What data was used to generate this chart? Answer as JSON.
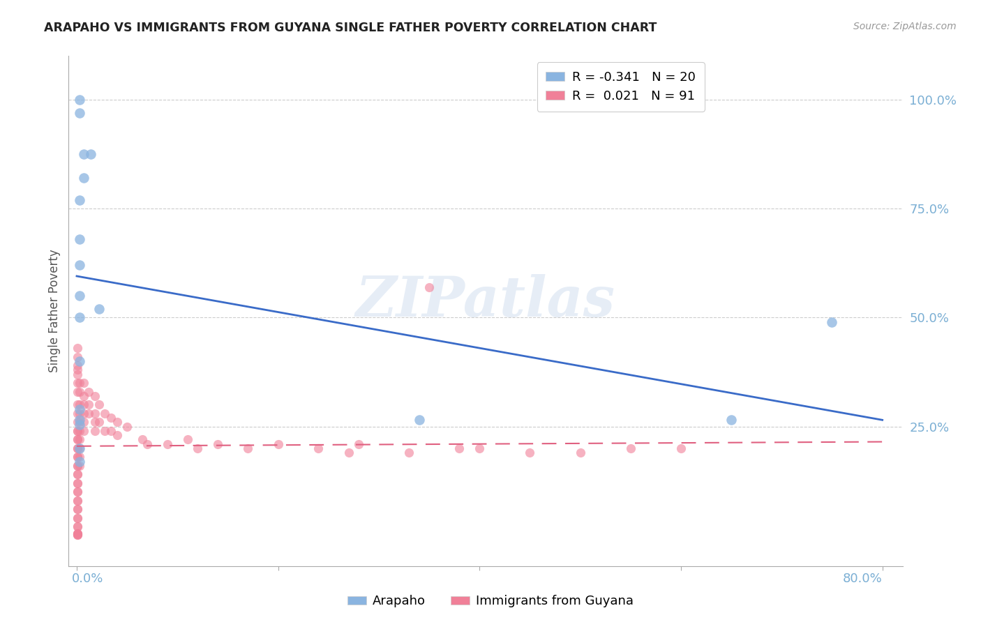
{
  "title": "ARAPAHO VS IMMIGRANTS FROM GUYANA SINGLE FATHER POVERTY CORRELATION CHART",
  "source": "Source: ZipAtlas.com",
  "ylabel": "Single Father Poverty",
  "watermark": "ZIPatlas",
  "legend": {
    "arapaho_R": "-0.341",
    "arapaho_N": "20",
    "guyana_R": "0.021",
    "guyana_N": "91"
  },
  "arapaho_color": "#8ab4e0",
  "guyana_color": "#f08098",
  "blue_line_color": "#3a6bc8",
  "pink_line_color": "#e06080",
  "arapaho_x": [
    0.003,
    0.003,
    0.007,
    0.014,
    0.007,
    0.003,
    0.003,
    0.003,
    0.003,
    0.022,
    0.003,
    0.003,
    0.003,
    0.003,
    0.003,
    0.34,
    0.75,
    0.65,
    0.003,
    0.003
  ],
  "arapaho_y": [
    1.0,
    0.97,
    0.875,
    0.875,
    0.82,
    0.77,
    0.68,
    0.62,
    0.55,
    0.52,
    0.5,
    0.4,
    0.29,
    0.265,
    0.255,
    0.265,
    0.49,
    0.265,
    0.2,
    0.17
  ],
  "guyana_x": [
    0.001,
    0.001,
    0.001,
    0.001,
    0.001,
    0.001,
    0.001,
    0.001,
    0.001,
    0.001,
    0.001,
    0.001,
    0.001,
    0.001,
    0.001,
    0.001,
    0.001,
    0.001,
    0.001,
    0.001,
    0.001,
    0.001,
    0.001,
    0.001,
    0.001,
    0.001,
    0.001,
    0.001,
    0.001,
    0.001,
    0.001,
    0.001,
    0.001,
    0.001,
    0.001,
    0.001,
    0.001,
    0.001,
    0.001,
    0.001,
    0.003,
    0.003,
    0.003,
    0.003,
    0.003,
    0.003,
    0.003,
    0.003,
    0.003,
    0.003,
    0.007,
    0.007,
    0.007,
    0.007,
    0.007,
    0.007,
    0.012,
    0.012,
    0.012,
    0.018,
    0.018,
    0.018,
    0.018,
    0.022,
    0.022,
    0.028,
    0.028,
    0.034,
    0.034,
    0.04,
    0.04,
    0.05,
    0.065,
    0.07,
    0.09,
    0.11,
    0.12,
    0.14,
    0.17,
    0.2,
    0.24,
    0.28,
    0.33,
    0.38,
    0.27,
    0.35,
    0.4,
    0.45,
    0.5,
    0.55,
    0.6
  ],
  "guyana_y": [
    0.24,
    0.22,
    0.2,
    0.18,
    0.16,
    0.14,
    0.12,
    0.1,
    0.08,
    0.06,
    0.04,
    0.02,
    0.005,
    0.003,
    0.001,
    0.38,
    0.35,
    0.33,
    0.3,
    0.28,
    0.26,
    0.24,
    0.22,
    0.2,
    0.18,
    0.16,
    0.14,
    0.12,
    0.1,
    0.08,
    0.06,
    0.04,
    0.02,
    0.005,
    0.003,
    0.001,
    0.43,
    0.41,
    0.39,
    0.37,
    0.35,
    0.33,
    0.3,
    0.28,
    0.26,
    0.24,
    0.22,
    0.2,
    0.18,
    0.16,
    0.35,
    0.32,
    0.3,
    0.28,
    0.26,
    0.24,
    0.33,
    0.3,
    0.28,
    0.32,
    0.28,
    0.26,
    0.24,
    0.3,
    0.26,
    0.28,
    0.24,
    0.27,
    0.24,
    0.26,
    0.23,
    0.25,
    0.22,
    0.21,
    0.21,
    0.22,
    0.2,
    0.21,
    0.2,
    0.21,
    0.2,
    0.21,
    0.19,
    0.2,
    0.19,
    0.57,
    0.2,
    0.19,
    0.19,
    0.2,
    0.2
  ],
  "blue_line_x": [
    0.0,
    0.8
  ],
  "blue_line_y": [
    0.595,
    0.265
  ],
  "pink_line_x": [
    0.0,
    0.8
  ],
  "pink_line_y": [
    0.205,
    0.215
  ],
  "xlim": [
    -0.008,
    0.82
  ],
  "ylim": [
    -0.07,
    1.1
  ],
  "yticks": [
    0.25,
    0.5,
    0.75,
    1.0
  ],
  "ytick_labels": [
    "25.0%",
    "50.0%",
    "75.0%",
    "100.0%"
  ],
  "background_color": "#ffffff",
  "grid_color": "#cccccc",
  "axis_color": "#7bafd4",
  "title_color": "#222222",
  "ylabel_color": "#555555",
  "source_color": "#999999"
}
